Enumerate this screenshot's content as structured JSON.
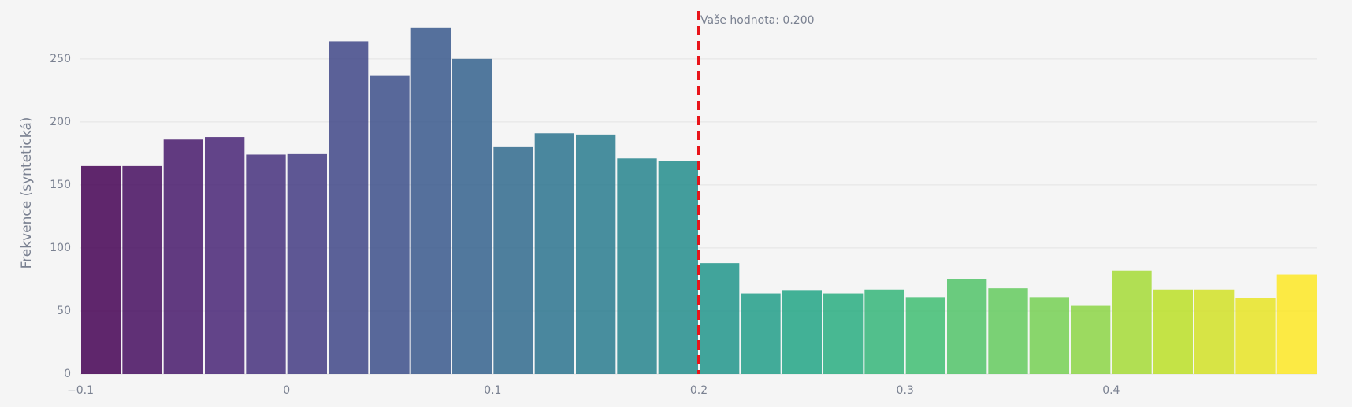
{
  "chart_data": {
    "type": "histogram",
    "y_label": "Frekvence (syntetická)",
    "bins": [
      -0.1,
      -0.08,
      -0.06,
      -0.04,
      -0.02,
      0,
      0.02,
      0.04,
      0.06,
      0.08,
      0.1,
      0.12,
      0.14,
      0.16,
      0.18,
      0.2,
      0.22,
      0.24,
      0.26,
      0.28,
      0.3,
      0.32,
      0.34,
      0.36,
      0.38,
      0.4,
      0.42,
      0.44,
      0.46,
      0.48,
      0.5
    ],
    "values": [
      165,
      165,
      186,
      188,
      174,
      175,
      264,
      237,
      275,
      250,
      180,
      191,
      190,
      171,
      169,
      88,
      64,
      66,
      64,
      67,
      61,
      75,
      68,
      61,
      54,
      82,
      67,
      67,
      60,
      79
    ],
    "colorscale": [
      "#440154",
      "#482475",
      "#414487",
      "#355f8d",
      "#2a788e",
      "#21918c",
      "#22a884",
      "#44bf70",
      "#7ad151",
      "#bddf26",
      "#fde725"
    ],
    "xlim": [
      -0.1,
      0.5
    ],
    "xticks": [
      {
        "value": -0.1,
        "label": "−0.1"
      },
      0,
      0.1,
      0.2,
      0.3,
      0.4
    ],
    "ylim": [
      0,
      288
    ],
    "yticks": [
      0,
      50,
      100,
      150,
      200,
      250
    ],
    "grid": true,
    "marker": {
      "value": 0.2,
      "label": "Vaše hodnota: 0.200",
      "color": "#e8141a"
    }
  }
}
